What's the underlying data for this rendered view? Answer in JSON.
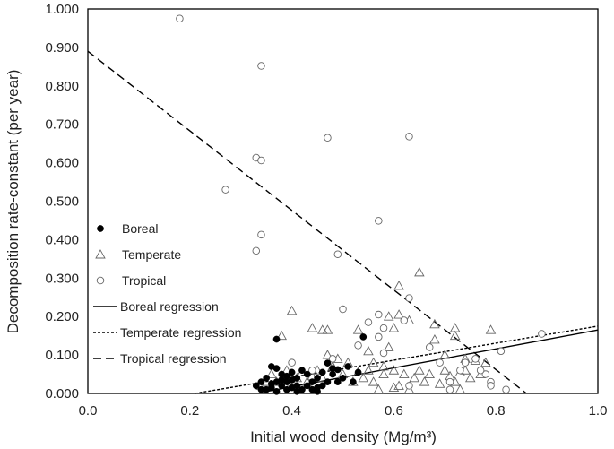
{
  "chart_data": {
    "type": "scatter",
    "xlabel": "Initial wood density (Mg/m³)",
    "ylabel": "Decomposition rate-constant (per year)",
    "xlim": [
      0,
      1
    ],
    "ylim": [
      0,
      1
    ],
    "x_ticks": [
      "0.0",
      "0.2",
      "0.4",
      "0.6",
      "0.8",
      "1.0"
    ],
    "y_ticks": [
      "0.000",
      "0.100",
      "0.200",
      "0.300",
      "0.400",
      "0.500",
      "0.600",
      "0.700",
      "0.800",
      "0.900",
      "1.000"
    ],
    "grid": false,
    "legend_position": "left-middle",
    "series": [
      {
        "name": "Boreal",
        "marker": "filled-circle",
        "color": "#000000",
        "points": [
          [
            0.37,
            0.141
          ],
          [
            0.54,
            0.147
          ],
          [
            0.47,
            0.079
          ],
          [
            0.49,
            0.062
          ],
          [
            0.51,
            0.07
          ],
          [
            0.53,
            0.055
          ],
          [
            0.5,
            0.04
          ],
          [
            0.46,
            0.055
          ],
          [
            0.45,
            0.04
          ],
          [
            0.44,
            0.03
          ],
          [
            0.43,
            0.05
          ],
          [
            0.42,
            0.06
          ],
          [
            0.41,
            0.04
          ],
          [
            0.4,
            0.055
          ],
          [
            0.39,
            0.03
          ],
          [
            0.38,
            0.05
          ],
          [
            0.37,
            0.065
          ],
          [
            0.36,
            0.07
          ],
          [
            0.35,
            0.04
          ],
          [
            0.34,
            0.03
          ],
          [
            0.33,
            0.02
          ],
          [
            0.35,
            0.01
          ],
          [
            0.36,
            0.015
          ],
          [
            0.38,
            0.02
          ],
          [
            0.39,
            0.01
          ],
          [
            0.4,
            0.015
          ],
          [
            0.41,
            0.02
          ],
          [
            0.42,
            0.01
          ],
          [
            0.44,
            0.01
          ],
          [
            0.45,
            0.015
          ],
          [
            0.46,
            0.02
          ],
          [
            0.47,
            0.03
          ],
          [
            0.48,
            0.05
          ],
          [
            0.49,
            0.03
          ],
          [
            0.37,
            0.03
          ],
          [
            0.38,
            0.035
          ],
          [
            0.36,
            0.025
          ],
          [
            0.34,
            0.01
          ],
          [
            0.43,
            0.02
          ],
          [
            0.4,
            0.035
          ],
          [
            0.52,
            0.03
          ],
          [
            0.45,
            0.005
          ],
          [
            0.39,
            0.045
          ],
          [
            0.41,
            0.005
          ],
          [
            0.37,
            0.005
          ],
          [
            0.48,
            0.065
          ]
        ]
      },
      {
        "name": "Temperate",
        "marker": "open-triangle",
        "color": "#666666",
        "points": [
          [
            0.65,
            0.315
          ],
          [
            0.61,
            0.28
          ],
          [
            0.61,
            0.205
          ],
          [
            0.59,
            0.2
          ],
          [
            0.63,
            0.19
          ],
          [
            0.6,
            0.17
          ],
          [
            0.53,
            0.165
          ],
          [
            0.47,
            0.165
          ],
          [
            0.46,
            0.165
          ],
          [
            0.44,
            0.17
          ],
          [
            0.4,
            0.215
          ],
          [
            0.38,
            0.15
          ],
          [
            0.68,
            0.18
          ],
          [
            0.72,
            0.17
          ],
          [
            0.79,
            0.165
          ],
          [
            0.72,
            0.15
          ],
          [
            0.68,
            0.14
          ],
          [
            0.7,
            0.1
          ],
          [
            0.74,
            0.09
          ],
          [
            0.76,
            0.085
          ],
          [
            0.78,
            0.08
          ],
          [
            0.7,
            0.06
          ],
          [
            0.73,
            0.055
          ],
          [
            0.75,
            0.04
          ],
          [
            0.72,
            0.03
          ],
          [
            0.69,
            0.025
          ],
          [
            0.66,
            0.03
          ],
          [
            0.64,
            0.04
          ],
          [
            0.62,
            0.05
          ],
          [
            0.6,
            0.06
          ],
          [
            0.58,
            0.07
          ],
          [
            0.56,
            0.08
          ],
          [
            0.55,
            0.06
          ],
          [
            0.54,
            0.04
          ],
          [
            0.53,
            0.055
          ],
          [
            0.52,
            0.03
          ],
          [
            0.5,
            0.05
          ],
          [
            0.48,
            0.07
          ],
          [
            0.46,
            0.04
          ],
          [
            0.45,
            0.06
          ],
          [
            0.44,
            0.045
          ],
          [
            0.43,
            0.03
          ],
          [
            0.42,
            0.055
          ],
          [
            0.41,
            0.04
          ],
          [
            0.4,
            0.03
          ],
          [
            0.39,
            0.06
          ],
          [
            0.38,
            0.04
          ],
          [
            0.37,
            0.03
          ],
          [
            0.36,
            0.05
          ],
          [
            0.35,
            0.03
          ],
          [
            0.34,
            0.02
          ],
          [
            0.57,
            0.01
          ],
          [
            0.6,
            0.015
          ],
          [
            0.63,
            0.01
          ],
          [
            0.73,
            0.01
          ],
          [
            0.71,
            0.045
          ],
          [
            0.74,
            0.06
          ],
          [
            0.77,
            0.05
          ],
          [
            0.56,
            0.03
          ],
          [
            0.58,
            0.05
          ],
          [
            0.61,
            0.02
          ],
          [
            0.65,
            0.06
          ],
          [
            0.67,
            0.05
          ],
          [
            0.51,
            0.08
          ],
          [
            0.49,
            0.09
          ],
          [
            0.47,
            0.1
          ],
          [
            0.55,
            0.11
          ],
          [
            0.59,
            0.12
          ]
        ]
      },
      {
        "name": "Tropical",
        "marker": "open-circle",
        "color": "#666666",
        "points": [
          [
            0.18,
            0.975
          ],
          [
            0.34,
            0.852
          ],
          [
            0.47,
            0.665
          ],
          [
            0.63,
            0.668
          ],
          [
            0.33,
            0.613
          ],
          [
            0.34,
            0.606
          ],
          [
            0.27,
            0.53
          ],
          [
            0.57,
            0.449
          ],
          [
            0.34,
            0.413
          ],
          [
            0.33,
            0.371
          ],
          [
            0.49,
            0.362
          ],
          [
            0.63,
            0.248
          ],
          [
            0.5,
            0.219
          ],
          [
            0.57,
            0.205
          ],
          [
            0.62,
            0.19
          ],
          [
            0.55,
            0.185
          ],
          [
            0.58,
            0.17
          ],
          [
            0.57,
            0.147
          ],
          [
            0.53,
            0.125
          ],
          [
            0.48,
            0.09
          ],
          [
            0.4,
            0.08
          ],
          [
            0.44,
            0.06
          ],
          [
            0.58,
            0.105
          ],
          [
            0.67,
            0.12
          ],
          [
            0.71,
            0.03
          ],
          [
            0.73,
            0.06
          ],
          [
            0.74,
            0.08
          ],
          [
            0.78,
            0.05
          ],
          [
            0.79,
            0.03
          ],
          [
            0.81,
            0.11
          ],
          [
            0.89,
            0.155
          ],
          [
            0.82,
            0.01
          ],
          [
            0.71,
            0.01
          ],
          [
            0.63,
            0.02
          ],
          [
            0.77,
            0.06
          ],
          [
            0.69,
            0.08
          ],
          [
            0.76,
            0.09
          ],
          [
            0.79,
            0.02
          ]
        ]
      }
    ],
    "regressions": [
      {
        "name": "Boreal regression",
        "style": "solid",
        "x": [
          0.35,
          1.0
        ],
        "y": [
          0.005,
          0.165
        ]
      },
      {
        "name": "Temperate regression",
        "style": "dotted",
        "x": [
          0.21,
          1.0
        ],
        "y": [
          0.0,
          0.175
        ]
      },
      {
        "name": "Tropical regression",
        "style": "long-dashed",
        "x": [
          0.0,
          0.86
        ],
        "y": [
          0.89,
          0.0
        ]
      }
    ]
  }
}
